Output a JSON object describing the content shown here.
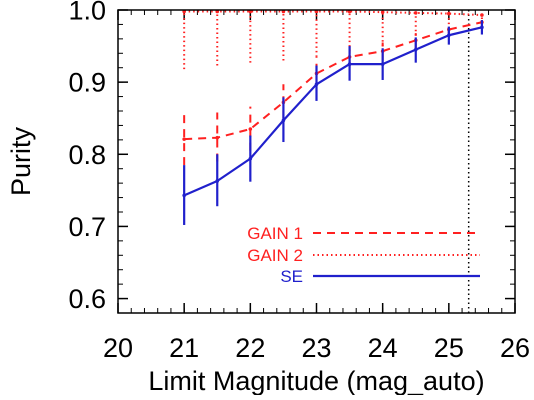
{
  "chart_data": {
    "type": "line",
    "xlabel": "Limit Magnitude (mag_auto)",
    "ylabel": "Purity",
    "xlim": [
      20,
      26
    ],
    "ylim": [
      0.58,
      1.0
    ],
    "x_ticks": [
      "20",
      "21",
      "22",
      "23",
      "24",
      "25",
      "26"
    ],
    "y_ticks": [
      "0.6",
      "0.7",
      "0.8",
      "0.9",
      "1.0"
    ],
    "x_tick_values": [
      20,
      21,
      22,
      23,
      24,
      25,
      26
    ],
    "y_tick_values": [
      0.6,
      0.7,
      0.8,
      0.9,
      1.0
    ],
    "x_minor_step": 0.2,
    "y_minor_step": 0.02,
    "grid": false,
    "legend_position": "bottom-right",
    "reference_line": {
      "x": 25.3,
      "style": "dotted",
      "color": "#000000"
    },
    "x": [
      21,
      21.5,
      22,
      22.5,
      23,
      23.5,
      24,
      24.5,
      25,
      25.5
    ],
    "series": [
      {
        "name": "GAIN 1",
        "color": "#ff2020",
        "style": "dashed",
        "values": [
          0.821,
          0.823,
          0.835,
          0.872,
          0.912,
          0.935,
          0.943,
          0.958,
          0.973,
          0.983
        ],
        "err_low": [
          0.785,
          0.79,
          0.805,
          0.85,
          0.895,
          0.92,
          0.93,
          0.945,
          0.962,
          0.975
        ],
        "err_high": [
          0.858,
          0.858,
          0.866,
          0.897,
          0.935,
          0.955,
          0.955,
          0.968,
          0.982,
          0.992
        ]
      },
      {
        "name": "GAIN 2",
        "color": "#ff2020",
        "style": "dotted",
        "values": [
          0.998,
          0.998,
          0.998,
          0.998,
          0.998,
          0.998,
          0.997,
          0.996,
          0.995,
          0.993
        ],
        "err_low": [
          0.918,
          0.923,
          0.927,
          0.93,
          0.935,
          0.943,
          0.95,
          0.958,
          0.968,
          0.975
        ],
        "err_high": [
          0.998,
          0.998,
          0.998,
          0.998,
          0.998,
          0.998,
          0.997,
          0.996,
          0.995,
          0.993
        ]
      },
      {
        "name": "SE",
        "color": "#2020cc",
        "style": "solid",
        "values": [
          0.743,
          0.763,
          0.794,
          0.847,
          0.897,
          0.925,
          0.925,
          0.945,
          0.965,
          0.976
        ],
        "err_low": [
          0.702,
          0.728,
          0.762,
          0.817,
          0.874,
          0.902,
          0.903,
          0.927,
          0.952,
          0.966
        ],
        "err_high": [
          0.785,
          0.8,
          0.826,
          0.879,
          0.923,
          0.95,
          0.947,
          0.962,
          0.977,
          0.986
        ]
      }
    ]
  }
}
